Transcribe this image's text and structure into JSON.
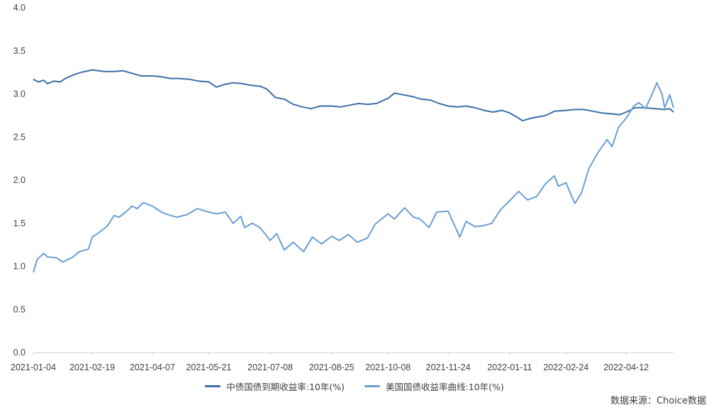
{
  "chart_data": {
    "type": "line",
    "title": "",
    "xlabel": "",
    "ylabel": "",
    "ylim": [
      0,
      4.0
    ],
    "y_ticks": [
      "0.0",
      "0.5",
      "1.0",
      "1.5",
      "2.0",
      "2.5",
      "3.0",
      "3.5",
      "4.0"
    ],
    "x_ticks": [
      "2021-01-04",
      "2021-02-19",
      "2021-04-07",
      "2021-05-21",
      "2021-07-08",
      "2021-08-25",
      "2021-10-08",
      "2021-11-24",
      "2022-01-11",
      "2022-02-24",
      "2022-04-12"
    ],
    "x_range": [
      "2021-01-04",
      "2022-05-19"
    ],
    "grid": false,
    "legend_position": "bottom",
    "series": [
      {
        "name": "中债国债到期收益率:10年(%)",
        "color": "#3d6fa8",
        "points": [
          [
            "2021-01-04",
            3.17
          ],
          [
            "2021-01-08",
            3.14
          ],
          [
            "2021-01-12",
            3.16
          ],
          [
            "2021-01-15",
            3.12
          ],
          [
            "2021-01-20",
            3.15
          ],
          [
            "2021-01-25",
            3.14
          ],
          [
            "2021-01-29",
            3.18
          ],
          [
            "2021-02-04",
            3.22
          ],
          [
            "2021-02-10",
            3.25
          ],
          [
            "2021-02-19",
            3.28
          ],
          [
            "2021-02-24",
            3.27
          ],
          [
            "2021-03-01",
            3.26
          ],
          [
            "2021-03-08",
            3.26
          ],
          [
            "2021-03-15",
            3.27
          ],
          [
            "2021-03-22",
            3.24
          ],
          [
            "2021-03-29",
            3.21
          ],
          [
            "2021-04-07",
            3.21
          ],
          [
            "2021-04-14",
            3.2
          ],
          [
            "2021-04-21",
            3.18
          ],
          [
            "2021-04-28",
            3.18
          ],
          [
            "2021-05-06",
            3.17
          ],
          [
            "2021-05-13",
            3.15
          ],
          [
            "2021-05-21",
            3.14
          ],
          [
            "2021-05-27",
            3.08
          ],
          [
            "2021-06-02",
            3.11
          ],
          [
            "2021-06-09",
            3.13
          ],
          [
            "2021-06-16",
            3.12
          ],
          [
            "2021-06-23",
            3.1
          ],
          [
            "2021-06-30",
            3.09
          ],
          [
            "2021-07-05",
            3.06
          ],
          [
            "2021-07-08",
            3.02
          ],
          [
            "2021-07-12",
            2.96
          ],
          [
            "2021-07-19",
            2.94
          ],
          [
            "2021-07-26",
            2.88
          ],
          [
            "2021-08-02",
            2.85
          ],
          [
            "2021-08-09",
            2.83
          ],
          [
            "2021-08-16",
            2.86
          ],
          [
            "2021-08-25",
            2.86
          ],
          [
            "2021-09-01",
            2.85
          ],
          [
            "2021-09-08",
            2.87
          ],
          [
            "2021-09-15",
            2.89
          ],
          [
            "2021-09-22",
            2.88
          ],
          [
            "2021-09-29",
            2.89
          ],
          [
            "2021-10-08",
            2.95
          ],
          [
            "2021-10-13",
            3.01
          ],
          [
            "2021-10-20",
            2.99
          ],
          [
            "2021-10-27",
            2.97
          ],
          [
            "2021-11-03",
            2.94
          ],
          [
            "2021-11-10",
            2.93
          ],
          [
            "2021-11-17",
            2.89
          ],
          [
            "2021-11-24",
            2.86
          ],
          [
            "2021-12-01",
            2.85
          ],
          [
            "2021-12-08",
            2.86
          ],
          [
            "2021-12-15",
            2.84
          ],
          [
            "2021-12-22",
            2.81
          ],
          [
            "2021-12-29",
            2.79
          ],
          [
            "2022-01-05",
            2.81
          ],
          [
            "2022-01-11",
            2.78
          ],
          [
            "2022-01-18",
            2.72
          ],
          [
            "2022-01-21",
            2.69
          ],
          [
            "2022-01-28",
            2.72
          ],
          [
            "2022-02-08",
            2.75
          ],
          [
            "2022-02-15",
            2.8
          ],
          [
            "2022-02-24",
            2.81
          ],
          [
            "2022-03-03",
            2.82
          ],
          [
            "2022-03-10",
            2.82
          ],
          [
            "2022-03-17",
            2.8
          ],
          [
            "2022-03-24",
            2.78
          ],
          [
            "2022-03-31",
            2.77
          ],
          [
            "2022-04-07",
            2.76
          ],
          [
            "2022-04-12",
            2.79
          ],
          [
            "2022-04-19",
            2.84
          ],
          [
            "2022-04-26",
            2.84
          ],
          [
            "2022-05-05",
            2.83
          ],
          [
            "2022-05-12",
            2.82
          ],
          [
            "2022-05-16",
            2.83
          ],
          [
            "2022-05-19",
            2.79
          ]
        ]
      },
      {
        "name": "美国国债收益率曲线:10年(%)",
        "color": "#6a9fd4",
        "points": [
          [
            "2021-01-04",
            0.93
          ],
          [
            "2021-01-07",
            1.08
          ],
          [
            "2021-01-12",
            1.15
          ],
          [
            "2021-01-15",
            1.11
          ],
          [
            "2021-01-22",
            1.1
          ],
          [
            "2021-01-27",
            1.05
          ],
          [
            "2021-02-03",
            1.1
          ],
          [
            "2021-02-09",
            1.17
          ],
          [
            "2021-02-16",
            1.2
          ],
          [
            "2021-02-19",
            1.34
          ],
          [
            "2021-02-25",
            1.4
          ],
          [
            "2021-03-03",
            1.47
          ],
          [
            "2021-03-08",
            1.59
          ],
          [
            "2021-03-12",
            1.57
          ],
          [
            "2021-03-18",
            1.64
          ],
          [
            "2021-03-22",
            1.7
          ],
          [
            "2021-03-26",
            1.67
          ],
          [
            "2021-03-31",
            1.74
          ],
          [
            "2021-04-07",
            1.7
          ],
          [
            "2021-04-14",
            1.63
          ],
          [
            "2021-04-19",
            1.6
          ],
          [
            "2021-04-26",
            1.57
          ],
          [
            "2021-05-04",
            1.6
          ],
          [
            "2021-05-12",
            1.67
          ],
          [
            "2021-05-21",
            1.63
          ],
          [
            "2021-05-27",
            1.61
          ],
          [
            "2021-06-03",
            1.63
          ],
          [
            "2021-06-09",
            1.5
          ],
          [
            "2021-06-15",
            1.58
          ],
          [
            "2021-06-18",
            1.45
          ],
          [
            "2021-06-24",
            1.5
          ],
          [
            "2021-06-30",
            1.45
          ],
          [
            "2021-07-08",
            1.3
          ],
          [
            "2021-07-13",
            1.38
          ],
          [
            "2021-07-19",
            1.19
          ],
          [
            "2021-07-26",
            1.28
          ],
          [
            "2021-08-03",
            1.17
          ],
          [
            "2021-08-10",
            1.34
          ],
          [
            "2021-08-17",
            1.26
          ],
          [
            "2021-08-25",
            1.35
          ],
          [
            "2021-08-31",
            1.3
          ],
          [
            "2021-09-07",
            1.37
          ],
          [
            "2021-09-14",
            1.28
          ],
          [
            "2021-09-22",
            1.33
          ],
          [
            "2021-09-28",
            1.49
          ],
          [
            "2021-10-08",
            1.61
          ],
          [
            "2021-10-13",
            1.55
          ],
          [
            "2021-10-21",
            1.68
          ],
          [
            "2021-10-28",
            1.57
          ],
          [
            "2021-11-02",
            1.55
          ],
          [
            "2021-11-09",
            1.45
          ],
          [
            "2021-11-15",
            1.63
          ],
          [
            "2021-11-24",
            1.64
          ],
          [
            "2021-11-30",
            1.44
          ],
          [
            "2021-12-03",
            1.34
          ],
          [
            "2021-12-08",
            1.52
          ],
          [
            "2021-12-15",
            1.46
          ],
          [
            "2021-12-21",
            1.47
          ],
          [
            "2021-12-28",
            1.5
          ],
          [
            "2022-01-04",
            1.66
          ],
          [
            "2022-01-11",
            1.76
          ],
          [
            "2022-01-18",
            1.87
          ],
          [
            "2022-01-25",
            1.77
          ],
          [
            "2022-02-01",
            1.81
          ],
          [
            "2022-02-08",
            1.96
          ],
          [
            "2022-02-15",
            2.05
          ],
          [
            "2022-02-18",
            1.93
          ],
          [
            "2022-02-24",
            1.97
          ],
          [
            "2022-02-28",
            1.83
          ],
          [
            "2022-03-03",
            1.73
          ],
          [
            "2022-03-08",
            1.85
          ],
          [
            "2022-03-14",
            2.14
          ],
          [
            "2022-03-21",
            2.32
          ],
          [
            "2022-03-28",
            2.47
          ],
          [
            "2022-04-01",
            2.39
          ],
          [
            "2022-04-06",
            2.61
          ],
          [
            "2022-04-12",
            2.72
          ],
          [
            "2022-04-18",
            2.86
          ],
          [
            "2022-04-22",
            2.9
          ],
          [
            "2022-04-27",
            2.83
          ],
          [
            "2022-05-02",
            2.99
          ],
          [
            "2022-05-06",
            3.13
          ],
          [
            "2022-05-10",
            3.0
          ],
          [
            "2022-05-12",
            2.84
          ],
          [
            "2022-05-16",
            2.99
          ],
          [
            "2022-05-19",
            2.84
          ]
        ]
      }
    ]
  },
  "source_text": "数据来源：Choice数据"
}
